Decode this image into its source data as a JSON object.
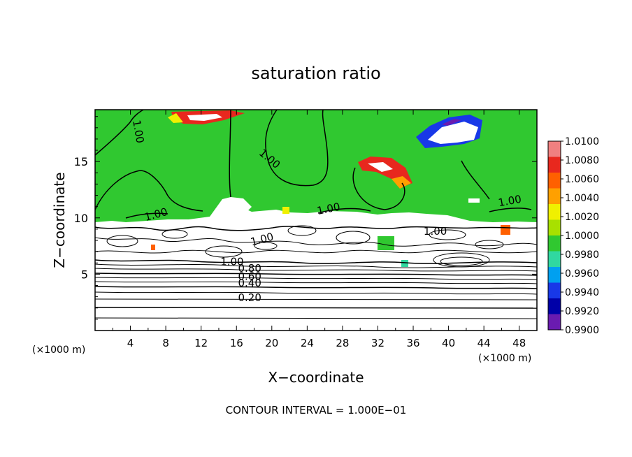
{
  "chart_data": {
    "type": "heatmap",
    "title": "saturation ratio",
    "xlabel": "X−coordinate",
    "ylabel": "Z−coordinate",
    "x_unit_left": "(×1000 m)",
    "x_unit_right": "(×1000 m)",
    "footer": "CONTOUR INTERVAL =  1.000E−01",
    "xlim": [
      0,
      50
    ],
    "ylim": [
      0,
      19.6
    ],
    "x_ticks": [
      4,
      8,
      12,
      16,
      20,
      24,
      28,
      32,
      36,
      40,
      44,
      48
    ],
    "y_ticks": [
      5,
      10,
      15
    ],
    "colorbar": {
      "min": 0.99,
      "max": 1.01,
      "labels": [
        "1.0100",
        "1.0080",
        "1.0060",
        "1.0040",
        "1.0020",
        "1.0000",
        "0.9980",
        "0.9960",
        "0.9940",
        "0.9920",
        "0.9900"
      ],
      "colors": [
        "#f08080",
        "#e8281e",
        "#ff6000",
        "#ffa000",
        "#f0f000",
        "#a8e000",
        "#30c830",
        "#30d8a0",
        "#00a0f0",
        "#1838e8",
        "#0000a8",
        "#6a1bb0"
      ]
    },
    "contour_labels": [
      {
        "text": "1.00",
        "x": 4.5,
        "z": 17.6,
        "rot": 80
      },
      {
        "text": "1.00",
        "x": 19.5,
        "z": 15.0,
        "rot": 40
      },
      {
        "text": "1.00",
        "x": 7.0,
        "z": 10.0,
        "rot": -15
      },
      {
        "text": "1.00",
        "x": 26.5,
        "z": 10.5,
        "rot": -12
      },
      {
        "text": "1.00",
        "x": 47.0,
        "z": 11.2,
        "rot": -10
      },
      {
        "text": "1.00",
        "x": 19.0,
        "z": 7.8,
        "rot": -15
      },
      {
        "text": "1.00",
        "x": 38.5,
        "z": 8.5,
        "rot": 0
      },
      {
        "text": "1.00",
        "x": 15.5,
        "z": 5.8,
        "rot": 0
      },
      {
        "text": "0.80",
        "x": 17.5,
        "z": 5.2,
        "rot": 0
      },
      {
        "text": "0.60",
        "x": 17.5,
        "z": 4.5,
        "rot": 0
      },
      {
        "text": "0.40",
        "x": 17.5,
        "z": 3.9,
        "rot": 0
      },
      {
        "text": "0.20",
        "x": 17.5,
        "z": 2.6,
        "rot": 0
      }
    ]
  }
}
